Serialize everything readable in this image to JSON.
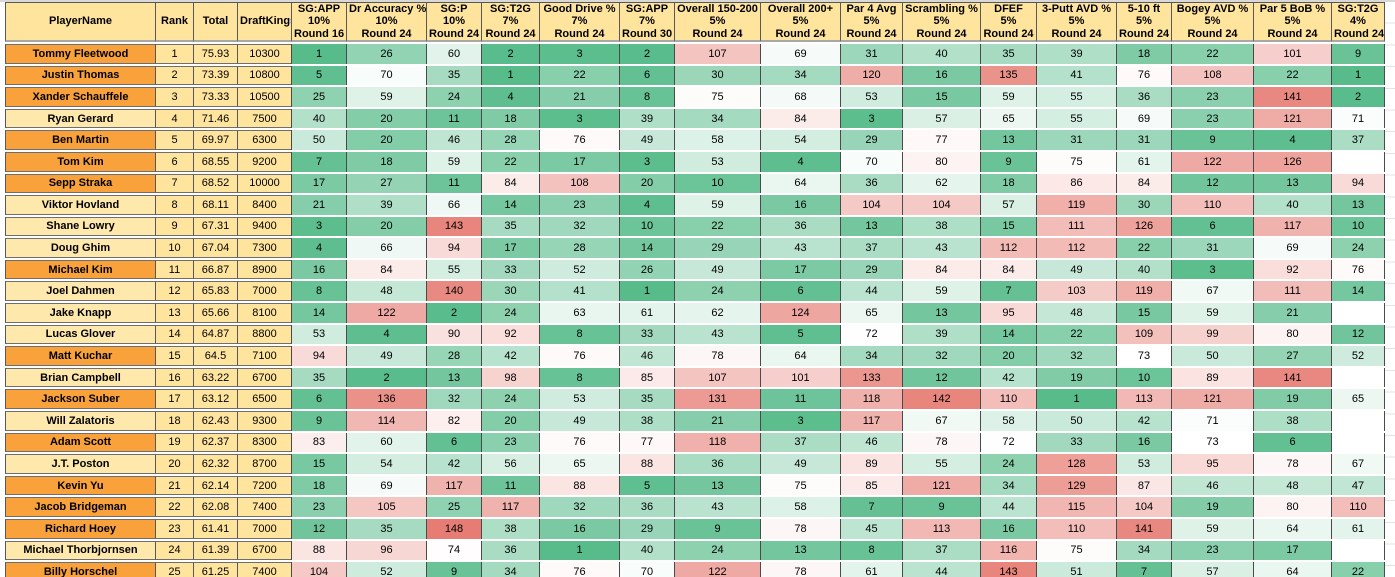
{
  "table": {
    "header": {
      "simple_cols": [
        "PlayerName",
        "Rank",
        "Total",
        "DraftKings"
      ],
      "stat_cols": [
        {
          "label": "SG:APP",
          "weight": "10%",
          "round": "Round 16"
        },
        {
          "label": "Dr Accuracy %",
          "weight": "10%",
          "round": "Round 24"
        },
        {
          "label": "SG:P",
          "weight": "10%",
          "round": "Round 24"
        },
        {
          "label": "SG:T2G",
          "weight": "7%",
          "round": "Round 24"
        },
        {
          "label": "Good Drive %",
          "weight": "7%",
          "round": "Round 24"
        },
        {
          "label": "SG:APP",
          "weight": "7%",
          "round": "Round 30"
        },
        {
          "label": "Overall 150-200",
          "weight": "5%",
          "round": "Round 24"
        },
        {
          "label": "Overall 200+",
          "weight": "5%",
          "round": "Round 24"
        },
        {
          "label": "Par 4 Avg",
          "weight": "5%",
          "round": "Round 24"
        },
        {
          "label": "Scrambling %",
          "weight": "5%",
          "round": "Round 24"
        },
        {
          "label": "DFEF",
          "weight": "5%",
          "round": "Round 24"
        },
        {
          "label": "3-Putt AVD %",
          "weight": "5%",
          "round": "Round 24"
        },
        {
          "label": "5-10 ft",
          "weight": "5%",
          "round": "Round 24"
        },
        {
          "label": "Bogey AVD %",
          "weight": "5%",
          "round": "Round 24"
        },
        {
          "label": "Par 5 BoB %",
          "weight": "5%",
          "round": "Round 24"
        },
        {
          "label": "SG:T2G",
          "weight": "4%",
          "round": "Round 24"
        }
      ]
    },
    "rows": [
      {
        "player": "Tommy Fleetwood",
        "rank": "1",
        "total": "75.93",
        "draftkings": "10300",
        "highlight": true,
        "stats": [
          "1",
          "26",
          "60",
          "2",
          "3",
          "2",
          "107",
          "69",
          "31",
          "40",
          "35",
          "39",
          "18",
          "22",
          "101",
          "9"
        ]
      },
      {
        "player": "Justin Thomas",
        "rank": "2",
        "total": "73.39",
        "draftkings": "10800",
        "highlight": true,
        "stats": [
          "5",
          "70",
          "35",
          "1",
          "22",
          "6",
          "30",
          "34",
          "120",
          "16",
          "135",
          "41",
          "76",
          "108",
          "22",
          "1"
        ]
      },
      {
        "player": "Xander Schauffele",
        "rank": "3",
        "total": "73.33",
        "draftkings": "10500",
        "highlight": true,
        "stats": [
          "25",
          "59",
          "24",
          "4",
          "21",
          "8",
          "75",
          "68",
          "53",
          "15",
          "59",
          "55",
          "36",
          "23",
          "141",
          "2"
        ]
      },
      {
        "player": "Ryan Gerard",
        "rank": "4",
        "total": "71.46",
        "draftkings": "7500",
        "highlight": false,
        "stats": [
          "40",
          "20",
          "11",
          "18",
          "3",
          "39",
          "34",
          "84",
          "3",
          "57",
          "65",
          "55",
          "69",
          "23",
          "121",
          "71"
        ]
      },
      {
        "player": "Ben Martin",
        "rank": "5",
        "total": "69.97",
        "draftkings": "6300",
        "highlight": true,
        "stats": [
          "50",
          "20",
          "46",
          "28",
          "76",
          "49",
          "58",
          "54",
          "29",
          "77",
          "13",
          "31",
          "31",
          "9",
          "4",
          "37"
        ]
      },
      {
        "player": "Tom Kim",
        "rank": "6",
        "total": "68.55",
        "draftkings": "9200",
        "highlight": true,
        "stats": [
          "7",
          "18",
          "59",
          "22",
          "17",
          "3",
          "53",
          "4",
          "70",
          "80",
          "9",
          "75",
          "61",
          "122",
          "126",
          ""
        ]
      },
      {
        "player": "Sepp Straka",
        "rank": "7",
        "total": "68.52",
        "draftkings": "10000",
        "highlight": true,
        "stats": [
          "17",
          "27",
          "11",
          "84",
          "108",
          "20",
          "10",
          "64",
          "36",
          "62",
          "18",
          "86",
          "84",
          "12",
          "13",
          "94"
        ]
      },
      {
        "player": "Viktor Hovland",
        "rank": "8",
        "total": "68.11",
        "draftkings": "8400",
        "highlight": false,
        "stats": [
          "21",
          "39",
          "66",
          "14",
          "23",
          "4",
          "59",
          "16",
          "104",
          "104",
          "57",
          "119",
          "30",
          "110",
          "40",
          "13"
        ]
      },
      {
        "player": "Shane Lowry",
        "rank": "9",
        "total": "67.31",
        "draftkings": "9400",
        "highlight": false,
        "stats": [
          "3",
          "20",
          "143",
          "35",
          "32",
          "10",
          "22",
          "36",
          "13",
          "38",
          "15",
          "111",
          "126",
          "6",
          "117",
          "10"
        ]
      },
      {
        "player": "Doug Ghim",
        "rank": "10",
        "total": "67.04",
        "draftkings": "7300",
        "highlight": false,
        "stats": [
          "4",
          "66",
          "94",
          "17",
          "28",
          "14",
          "29",
          "43",
          "37",
          "43",
          "112",
          "112",
          "22",
          "31",
          "69",
          "24"
        ]
      },
      {
        "player": "Michael Kim",
        "rank": "11",
        "total": "66.87",
        "draftkings": "8900",
        "highlight": true,
        "stats": [
          "16",
          "84",
          "55",
          "33",
          "52",
          "26",
          "49",
          "17",
          "29",
          "84",
          "84",
          "49",
          "40",
          "3",
          "92",
          "76"
        ]
      },
      {
        "player": "Joel Dahmen",
        "rank": "12",
        "total": "65.83",
        "draftkings": "7000",
        "highlight": false,
        "stats": [
          "8",
          "48",
          "140",
          "30",
          "41",
          "1",
          "24",
          "6",
          "44",
          "59",
          "7",
          "103",
          "119",
          "67",
          "111",
          "14"
        ]
      },
      {
        "player": "Jake Knapp",
        "rank": "13",
        "total": "65.66",
        "draftkings": "8100",
        "highlight": false,
        "stats": [
          "14",
          "122",
          "2",
          "24",
          "63",
          "61",
          "62",
          "124",
          "65",
          "13",
          "95",
          "48",
          "15",
          "59",
          "21",
          ""
        ]
      },
      {
        "player": "Lucas Glover",
        "rank": "14",
        "total": "64.87",
        "draftkings": "8800",
        "highlight": false,
        "stats": [
          "53",
          "4",
          "90",
          "92",
          "8",
          "33",
          "43",
          "5",
          "72",
          "39",
          "14",
          "22",
          "109",
          "99",
          "80",
          "12"
        ]
      },
      {
        "player": "Matt Kuchar",
        "rank": "15",
        "total": "64.5",
        "draftkings": "7100",
        "highlight": true,
        "stats": [
          "94",
          "49",
          "28",
          "42",
          "76",
          "46",
          "78",
          "64",
          "34",
          "32",
          "20",
          "32",
          "73",
          "50",
          "27",
          "52"
        ]
      },
      {
        "player": "Brian Campbell",
        "rank": "16",
        "total": "63.22",
        "draftkings": "6700",
        "highlight": false,
        "stats": [
          "35",
          "2",
          "13",
          "98",
          "8",
          "85",
          "107",
          "101",
          "133",
          "12",
          "42",
          "19",
          "10",
          "89",
          "141",
          ""
        ]
      },
      {
        "player": "Jackson Suber",
        "rank": "17",
        "total": "63.12",
        "draftkings": "6500",
        "highlight": true,
        "stats": [
          "6",
          "136",
          "32",
          "24",
          "53",
          "35",
          "131",
          "11",
          "118",
          "142",
          "110",
          "1",
          "113",
          "121",
          "19",
          "65"
        ]
      },
      {
        "player": "Will Zalatoris",
        "rank": "18",
        "total": "62.43",
        "draftkings": "9300",
        "highlight": false,
        "stats": [
          "9",
          "114",
          "82",
          "20",
          "49",
          "38",
          "21",
          "3",
          "117",
          "67",
          "58",
          "50",
          "42",
          "71",
          "38",
          ""
        ]
      },
      {
        "player": "Adam Scott",
        "rank": "19",
        "total": "62.37",
        "draftkings": "8300",
        "highlight": true,
        "stats": [
          "83",
          "60",
          "6",
          "23",
          "76",
          "77",
          "118",
          "37",
          "46",
          "78",
          "72",
          "33",
          "16",
          "73",
          "6",
          ""
        ]
      },
      {
        "player": "J.T. Poston",
        "rank": "20",
        "total": "62.32",
        "draftkings": "8700",
        "highlight": false,
        "stats": [
          "15",
          "54",
          "42",
          "56",
          "65",
          "88",
          "36",
          "49",
          "89",
          "55",
          "24",
          "128",
          "53",
          "95",
          "78",
          "67"
        ]
      },
      {
        "player": "Kevin Yu",
        "rank": "21",
        "total": "62.14",
        "draftkings": "7200",
        "highlight": true,
        "stats": [
          "18",
          "69",
          "117",
          "11",
          "88",
          "5",
          "13",
          "75",
          "85",
          "121",
          "34",
          "129",
          "87",
          "46",
          "48",
          "47"
        ]
      },
      {
        "player": "Jacob Bridgeman",
        "rank": "22",
        "total": "62.08",
        "draftkings": "7400",
        "highlight": true,
        "stats": [
          "23",
          "105",
          "25",
          "117",
          "32",
          "36",
          "43",
          "58",
          "7",
          "9",
          "44",
          "115",
          "104",
          "19",
          "80",
          "110"
        ]
      },
      {
        "player": "Richard Hoey",
        "rank": "23",
        "total": "61.41",
        "draftkings": "7000",
        "highlight": true,
        "stats": [
          "12",
          "35",
          "148",
          "38",
          "16",
          "29",
          "9",
          "78",
          "45",
          "113",
          "16",
          "110",
          "141",
          "59",
          "64",
          "61"
        ]
      },
      {
        "player": "Michael Thorbjornsen",
        "rank": "24",
        "total": "61.39",
        "draftkings": "6700",
        "highlight": false,
        "stats": [
          "88",
          "96",
          "74",
          "36",
          "1",
          "40",
          "24",
          "13",
          "8",
          "37",
          "116",
          "75",
          "34",
          "23",
          "17",
          ""
        ]
      },
      {
        "player": "Billy Horschel",
        "rank": "25",
        "total": "61.25",
        "draftkings": "7400",
        "highlight": true,
        "stats": [
          "104",
          "52",
          "9",
          "34",
          "76",
          "70",
          "122",
          "78",
          "61",
          "44",
          "143",
          "51",
          "7",
          "57",
          "64",
          "22"
        ]
      }
    ]
  },
  "heatmap": {
    "green": "#57BB8A",
    "white": "#FFFFFF",
    "red": "#E67C73",
    "min": 1,
    "mid": 73,
    "max": 148
  },
  "colors": {
    "header_bg": "#FFE49E",
    "orange_row_bg": "#F9A23C",
    "light_row_bg": "#FFE8AC",
    "yellow_cell_bg": "#FFE49E"
  }
}
